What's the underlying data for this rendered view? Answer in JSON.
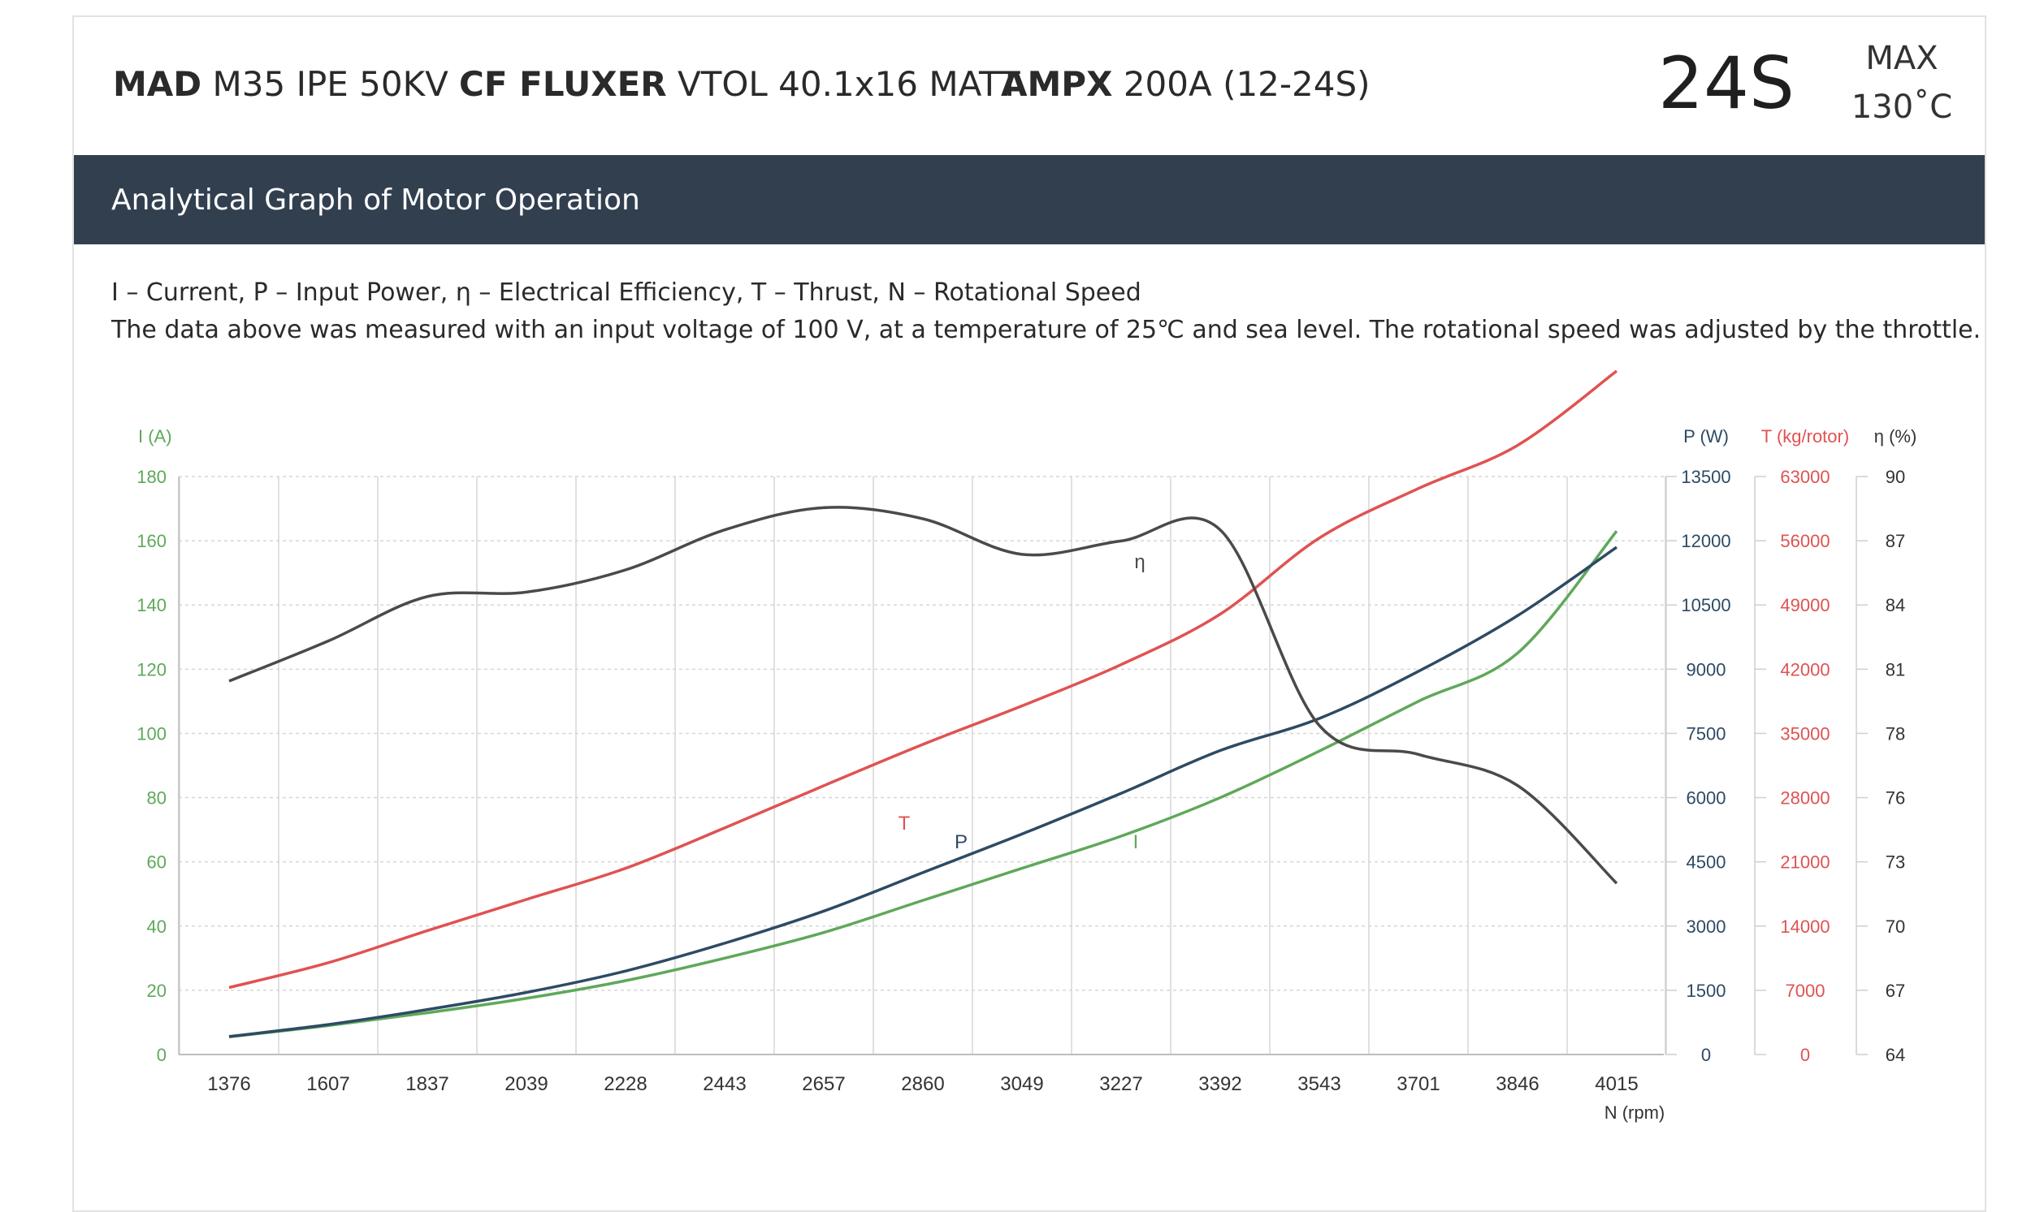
{
  "header": {
    "products": [
      {
        "brand": "MAD",
        "model": "M35 IPE 50KV"
      },
      {
        "brand": "CF FLUXER",
        "model": "VTOL 40.1x16 MATT"
      },
      {
        "brand": "AMPX",
        "model": "200A (12-24S)"
      }
    ],
    "voltage": "24S",
    "max_label": "MAX",
    "max_temp": "130˚C"
  },
  "section": {
    "title": "Analytical Graph of Motor Operation",
    "legend_line": "I – Current, P – Input Power, η – Electrical Efficiency, T – Thrust,   N – Rotational Speed",
    "note": "The data above was measured with an input voltage of 100 V, at a temperature of 25℃ and sea level. The rotational speed was adjusted by the throttle."
  },
  "colors": {
    "current": "#5fa85a",
    "power": "#2e4a64",
    "thrust": "#e05252",
    "efficiency": "#4a4a4a",
    "header_bg": "#323f4f"
  },
  "chart_data": {
    "type": "line",
    "x": [
      1376,
      1607,
      1837,
      2039,
      2228,
      2443,
      2657,
      2860,
      3049,
      3227,
      3392,
      3543,
      3701,
      3846,
      4015
    ],
    "xlabel": "N (rpm)",
    "grid": true,
    "axes": {
      "I": {
        "label": "I (A)",
        "ticks": [
          "0",
          "20",
          "40",
          "60",
          "80",
          "100",
          "120",
          "140",
          "160",
          "180"
        ],
        "range": [
          0,
          180
        ]
      },
      "P": {
        "label": "P (W)",
        "ticks": [
          "0",
          "1500",
          "3000",
          "4500",
          "6000",
          "7500",
          "9000",
          "10500",
          "12000",
          "13500"
        ],
        "range": [
          0,
          13500
        ]
      },
      "T": {
        "label": "T (kg/rotor)",
        "ticks": [
          "0",
          "7000",
          "14000",
          "21000",
          "28000",
          "35000",
          "42000",
          "49000",
          "56000",
          "63000"
        ],
        "range": [
          0,
          63000
        ]
      },
      "eta": {
        "label": "η (%)",
        "ticks": [
          "64",
          "67",
          "70",
          "73",
          "76",
          "78",
          "81",
          "84",
          "87",
          "90"
        ],
        "range": [
          64,
          90
        ]
      }
    },
    "series": [
      {
        "name": "I",
        "axis": "I",
        "values": [
          5.5,
          9,
          13,
          17.5,
          23,
          30,
          38,
          48,
          58,
          68,
          80,
          94.5,
          110,
          125,
          163
        ]
      },
      {
        "name": "P",
        "axis": "P",
        "values": [
          420,
          700,
          1050,
          1450,
          1950,
          2600,
          3350,
          4250,
          5150,
          6100,
          7100,
          7850,
          8950,
          10250,
          11850
        ]
      },
      {
        "name": "T",
        "axis": "T",
        "values": [
          7300,
          10000,
          13500,
          16900,
          20300,
          24700,
          29300,
          33800,
          38000,
          42500,
          48000,
          56300,
          61700,
          66400,
          74500
        ]
      },
      {
        "name": "η",
        "axis": "eta",
        "values": [
          80.8,
          82.6,
          84.6,
          84.8,
          85.8,
          87.6,
          88.6,
          88.1,
          86.5,
          87.1,
          87.6,
          78.8,
          77.5,
          76.1,
          71.7
        ]
      }
    ]
  }
}
